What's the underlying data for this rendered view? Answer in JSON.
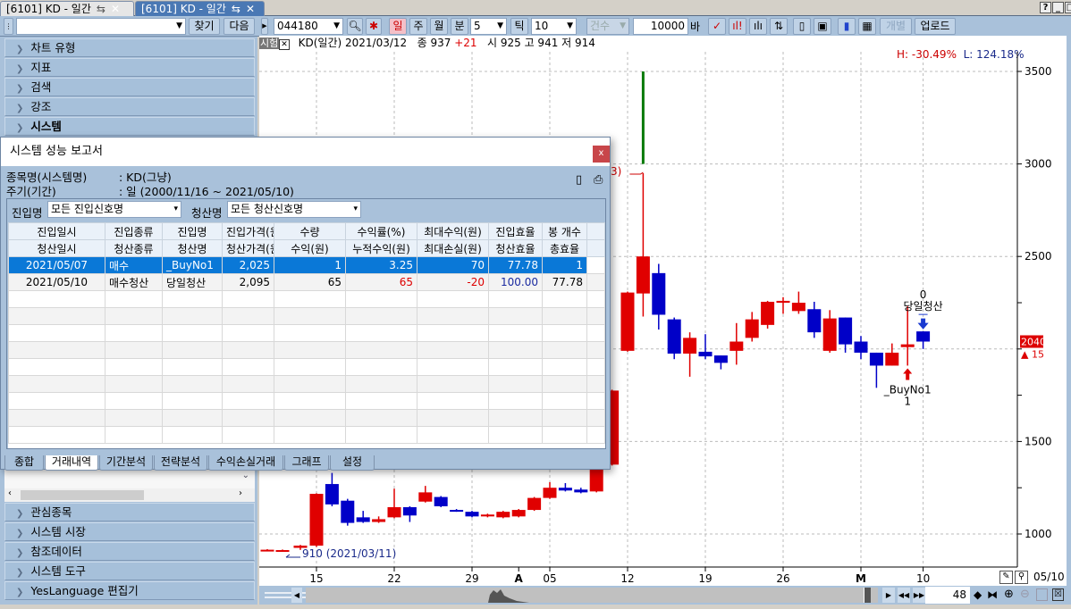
{
  "window_tabs": [
    {
      "label": "[6101] KD - 일간",
      "active": false
    },
    {
      "label": "[6101] KD - 일간",
      "active": true
    }
  ],
  "window_buttons": [
    "?",
    "_",
    "□"
  ],
  "left_toolbar": {
    "search_value": "",
    "find_label": "찾기",
    "next_label": "다음"
  },
  "left_sections_top": [
    {
      "label": "차트 유형"
    },
    {
      "label": "지표"
    },
    {
      "label": "검색"
    },
    {
      "label": "강조"
    },
    {
      "label": "시스템",
      "expanded": true
    }
  ],
  "left_sections_bottom": [
    {
      "label": "관심종목"
    },
    {
      "label": "시스템 시장"
    },
    {
      "label": "참조데이터"
    },
    {
      "label": "시스템 도구"
    },
    {
      "label": "YesLanguage 편집기"
    }
  ],
  "toolbar": {
    "symbol": "044180",
    "period_buttons": [
      "일",
      "주",
      "월",
      "분"
    ],
    "active_period": "일",
    "minute_value": "5",
    "tick_label": "틱",
    "tick_value": "10",
    "count_select": "건수",
    "bar_count": "10000",
    "bar_unit": "바",
    "individual_label": "개별",
    "upload_label": "업로드"
  },
  "info": {
    "badge": "시험",
    "title": "KD(일간) 2021/03/12",
    "close_label": "종 937",
    "change": "+21",
    "ohl": "시 925 고 941 저 914",
    "high_pct": "H: -30.49%",
    "low_pct": "L: 124.18%"
  },
  "dialog": {
    "title": "시스템 성능 보고서",
    "close": "x",
    "name_label": "종목명(시스템명)",
    "name_value": ": KD(그냥)",
    "period_label": "주기(기간)",
    "period_value": ": 일 (2000/11/16 ~ 2021/05/10)",
    "entry_label": "진입명",
    "entry_select": "모든 진입신호명",
    "exit_label": "청산명",
    "exit_select": "모든 청산신호명",
    "header1": [
      "진입일시",
      "진입종류",
      "진입명",
      "진입가격(원)",
      "수량",
      "수익률(%)",
      "최대수익(원)",
      "진입효율",
      "봉 개수"
    ],
    "header2": [
      "청산일시",
      "청산종류",
      "청산명",
      "청산가격(원)",
      "수익(원)",
      "누적수익(원)",
      "최대손실(원)",
      "청산효율",
      "총효율"
    ],
    "rows": [
      [
        "2021/05/07",
        "매수",
        "_BuyNo1",
        "2,025",
        "1",
        "3.25",
        "70",
        "77.78",
        "1"
      ],
      [
        "2021/05/10",
        "매수청산",
        "당일청산",
        "2,095",
        "65",
        "65",
        "-20",
        "100.00",
        "77.78"
      ]
    ],
    "tabs": [
      "종합",
      "거래내역",
      "기간분석",
      "전략분석",
      "수익손실거래",
      "그래프",
      "설정"
    ],
    "active_tab": "거래내역"
  },
  "chart_data": {
    "type": "candlestick",
    "colors": {
      "up": "#e00000",
      "down": "#0000c8",
      "volume_marker": "#0a7a0a"
    },
    "yticks": [
      3500,
      3000,
      2500,
      1500,
      1000
    ],
    "ylim": [
      900,
      3650
    ],
    "xticks": [
      {
        "label": "15",
        "date": "03/15"
      },
      {
        "label": "22",
        "date": "03/22"
      },
      {
        "label": "29",
        "date": "03/29"
      },
      {
        "label": "A",
        "date": "04/01"
      },
      {
        "label": "05",
        "date": "04/05"
      },
      {
        "label": "12",
        "date": "04/12"
      },
      {
        "label": "19",
        "date": "04/19"
      },
      {
        "label": "26",
        "date": "04/26"
      },
      {
        "label": "M",
        "date": "05/03"
      },
      {
        "label": "10",
        "date": "05/10"
      }
    ],
    "candles": [
      {
        "d": "03/09",
        "o": 915,
        "h": 918,
        "l": 912,
        "c": 915
      },
      {
        "d": "03/10",
        "o": 913,
        "h": 916,
        "l": 910,
        "c": 913
      },
      {
        "d": "03/12",
        "o": 925,
        "h": 941,
        "l": 914,
        "c": 937
      },
      {
        "d": "03/15",
        "o": 937,
        "h": 1220,
        "l": 930,
        "c": 1217
      },
      {
        "d": "03/16",
        "o": 1270,
        "h": 1330,
        "l": 1150,
        "c": 1160
      },
      {
        "d": "03/17",
        "o": 1180,
        "h": 1190,
        "l": 1045,
        "c": 1060
      },
      {
        "d": "03/18",
        "o": 1090,
        "h": 1125,
        "l": 1060,
        "c": 1065
      },
      {
        "d": "03/19",
        "o": 1065,
        "h": 1095,
        "l": 1060,
        "c": 1080
      },
      {
        "d": "03/22",
        "o": 1090,
        "h": 1245,
        "l": 1085,
        "c": 1145
      },
      {
        "d": "03/23",
        "o": 1145,
        "h": 1150,
        "l": 1065,
        "c": 1100
      },
      {
        "d": "03/24",
        "o": 1175,
        "h": 1260,
        "l": 1170,
        "c": 1225
      },
      {
        "d": "03/25",
        "o": 1200,
        "h": 1205,
        "l": 1145,
        "c": 1150
      },
      {
        "d": "03/26",
        "o": 1130,
        "h": 1135,
        "l": 1120,
        "c": 1125
      },
      {
        "d": "03/29",
        "o": 1120,
        "h": 1125,
        "l": 1090,
        "c": 1095
      },
      {
        "d": "03/30",
        "o": 1095,
        "h": 1110,
        "l": 1090,
        "c": 1105
      },
      {
        "d": "03/31",
        "o": 1090,
        "h": 1125,
        "l": 1085,
        "c": 1120
      },
      {
        "d": "04/01",
        "o": 1095,
        "h": 1135,
        "l": 1090,
        "c": 1130
      },
      {
        "d": "04/02",
        "o": 1130,
        "h": 1200,
        "l": 1125,
        "c": 1195
      },
      {
        "d": "04/05",
        "o": 1195,
        "h": 1280,
        "l": 1190,
        "c": 1250
      },
      {
        "d": "04/06",
        "o": 1250,
        "h": 1275,
        "l": 1230,
        "c": 1235
      },
      {
        "d": "04/07",
        "o": 1240,
        "h": 1250,
        "l": 1220,
        "c": 1225
      },
      {
        "d": "04/08",
        "o": 1230,
        "h": 1380,
        "l": 1225,
        "c": 1375
      },
      {
        "d": "04/09",
        "o": 1375,
        "h": 1780,
        "l": 1370,
        "c": 1775
      },
      {
        "d": "04/12",
        "o": 1990,
        "h": 2310,
        "l": 1985,
        "c": 2305
      },
      {
        "d": "04/13",
        "o": 2300,
        "h": 2950,
        "l": 2175,
        "c": 2500
      },
      {
        "d": "04/14",
        "o": 2410,
        "h": 2460,
        "l": 2105,
        "c": 2185
      },
      {
        "d": "04/15",
        "o": 2160,
        "h": 2170,
        "l": 1945,
        "c": 1975
      },
      {
        "d": "04/16",
        "o": 1975,
        "h": 2090,
        "l": 1850,
        "c": 2060
      },
      {
        "d": "04/19",
        "o": 1985,
        "h": 2080,
        "l": 1945,
        "c": 1960
      },
      {
        "d": "04/20",
        "o": 1965,
        "h": 1965,
        "l": 1890,
        "c": 1925
      },
      {
        "d": "04/21",
        "o": 1990,
        "h": 2140,
        "l": 1915,
        "c": 2040
      },
      {
        "d": "04/22",
        "o": 2060,
        "h": 2200,
        "l": 2040,
        "c": 2160
      },
      {
        "d": "04/23",
        "o": 2130,
        "h": 2260,
        "l": 2110,
        "c": 2255
      },
      {
        "d": "04/26",
        "o": 2250,
        "h": 2280,
        "l": 2190,
        "c": 2260
      },
      {
        "d": "04/27",
        "o": 2205,
        "h": 2310,
        "l": 2190,
        "c": 2250
      },
      {
        "d": "04/28",
        "o": 2215,
        "h": 2255,
        "l": 2060,
        "c": 2090
      },
      {
        "d": "04/29",
        "o": 1990,
        "h": 2210,
        "l": 1980,
        "c": 2165
      },
      {
        "d": "04/30",
        "o": 2170,
        "h": 2170,
        "l": 1980,
        "c": 2025
      },
      {
        "d": "05/03",
        "o": 2040,
        "h": 2070,
        "l": 1945,
        "c": 1980
      },
      {
        "d": "05/04",
        "o": 1980,
        "h": 1980,
        "l": 1790,
        "c": 1910
      },
      {
        "d": "05/06",
        "o": 1910,
        "h": 2030,
        "l": 1910,
        "c": 1980
      },
      {
        "d": "05/07",
        "o": 2010,
        "h": 2230,
        "l": 1910,
        "c": 2025
      },
      {
        "d": "05/10",
        "o": 2095,
        "h": 2095,
        "l": 2000,
        "c": 2040
      }
    ],
    "marker": {
      "d": "04/13",
      "from": 3000,
      "to": 3500
    },
    "high_label": "3)",
    "low_label": "910 (2021/03/11)",
    "buy_signal": {
      "d": "05/07",
      "name": "_BuyNo1",
      "qty": "1"
    },
    "exit_signal": {
      "d": "05/10",
      "name": "당일청산",
      "qty": "0"
    },
    "last_price": "2040",
    "last_change": "▲ 15"
  },
  "bottom": {
    "last_date": "05/10",
    "visible_bars": "48"
  }
}
